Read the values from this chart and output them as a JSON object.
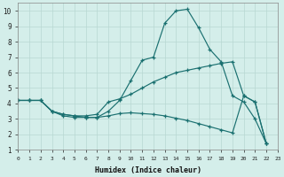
{
  "xlabel": "Humidex (Indice chaleur)",
  "xlim": [
    0,
    23
  ],
  "ylim": [
    1,
    10.5
  ],
  "xticks": [
    0,
    1,
    2,
    3,
    4,
    5,
    6,
    7,
    8,
    9,
    10,
    11,
    12,
    13,
    14,
    15,
    16,
    17,
    18,
    19,
    20,
    21,
    22,
    23
  ],
  "yticks": [
    1,
    2,
    3,
    4,
    5,
    6,
    7,
    8,
    9,
    10
  ],
  "color": "#1a7070",
  "bg_color": "#d4eeea",
  "grid_color": "#b8d8d2",
  "marker": "+",
  "markersize": 3.0,
  "markeredgewidth": 0.9,
  "linewidth": 0.85,
  "line1_x": [
    0,
    1,
    2,
    3,
    4,
    5,
    6,
    7,
    8,
    9,
    10,
    11,
    12,
    13,
    14,
    15,
    16,
    17,
    18,
    19,
    20,
    21,
    22
  ],
  "line1_y": [
    4.2,
    4.2,
    4.2,
    3.5,
    3.2,
    3.1,
    3.1,
    3.1,
    3.5,
    4.2,
    5.5,
    6.8,
    7.0,
    9.2,
    10.0,
    10.1,
    8.9,
    7.5,
    6.7,
    4.5,
    4.1,
    3.0,
    1.4
  ],
  "line2_x": [
    0,
    1,
    2,
    3,
    4,
    5,
    6,
    7,
    8,
    9,
    10,
    11,
    12,
    13,
    14,
    15,
    16,
    17,
    18,
    19,
    20,
    21,
    22
  ],
  "line2_y": [
    4.2,
    4.2,
    4.2,
    3.5,
    3.3,
    3.2,
    3.2,
    3.3,
    4.1,
    4.3,
    4.6,
    5.0,
    5.4,
    5.7,
    6.0,
    6.15,
    6.3,
    6.45,
    6.6,
    6.7,
    4.5,
    4.1,
    1.4
  ],
  "line3_x": [
    0,
    1,
    2,
    3,
    4,
    5,
    6,
    7,
    8,
    9,
    10,
    11,
    12,
    13,
    14,
    15,
    16,
    17,
    18,
    19,
    20,
    21,
    22
  ],
  "line3_y": [
    4.2,
    4.2,
    4.2,
    3.5,
    3.3,
    3.2,
    3.1,
    3.1,
    3.2,
    3.35,
    3.4,
    3.35,
    3.3,
    3.2,
    3.05,
    2.9,
    2.7,
    2.5,
    2.3,
    2.1,
    4.5,
    4.1,
    1.4
  ]
}
